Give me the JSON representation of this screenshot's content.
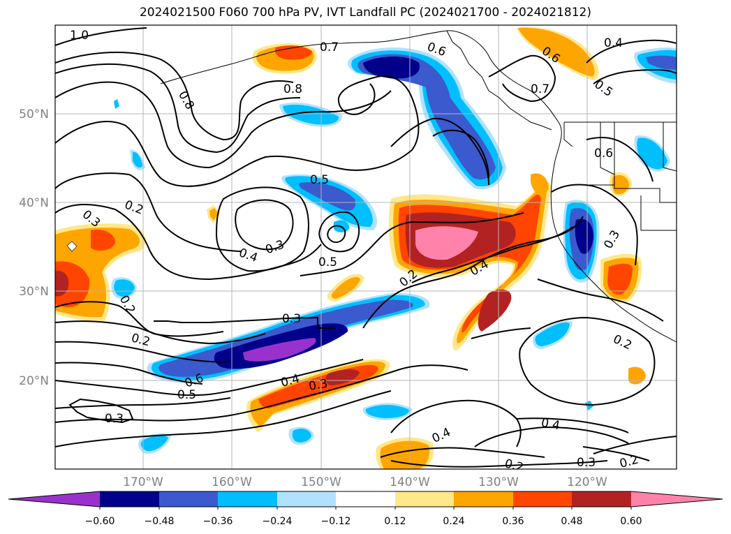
{
  "title": "2024021500 F060 700 hPa PV, IVT Landfall PC (2024021700 - 2024021812)",
  "map": {
    "lat_labels": [
      "50°N",
      "40°N",
      "30°N",
      "20°N"
    ],
    "lon_labels": [
      "170°W",
      "160°W",
      "150°W",
      "140°W",
      "130°W",
      "120°W"
    ],
    "contour_labels": [
      "1.0",
      "0.8",
      "0.7",
      "0.6",
      "0.8",
      "0.7",
      "0.6",
      "0.4",
      "0.5",
      "0.6",
      "0.5",
      "0.2",
      "0.3",
      "0.3",
      "0.4",
      "0.5",
      "0.2",
      "0.4",
      "0.3",
      "0.2",
      "0.3",
      "0.2",
      "0.6",
      "0.5",
      "0.4",
      "0.3",
      "0.3",
      "0.4",
      "0.2",
      "0.3",
      "0.4",
      "0.2"
    ]
  },
  "colorbar": {
    "tick_labels": [
      "−0.60",
      "−0.48",
      "−0.36",
      "−0.24",
      "−0.12",
      "0.12",
      "0.24",
      "0.36",
      "0.48",
      "0.60"
    ],
    "colors": [
      "#9932cc",
      "#00008b",
      "#3a5acd",
      "#00bfff",
      "#b0e2ff",
      "#ffffff",
      "#ffe88a",
      "#ffa500",
      "#ff4500",
      "#b22222",
      "#ff82ab"
    ]
  }
}
